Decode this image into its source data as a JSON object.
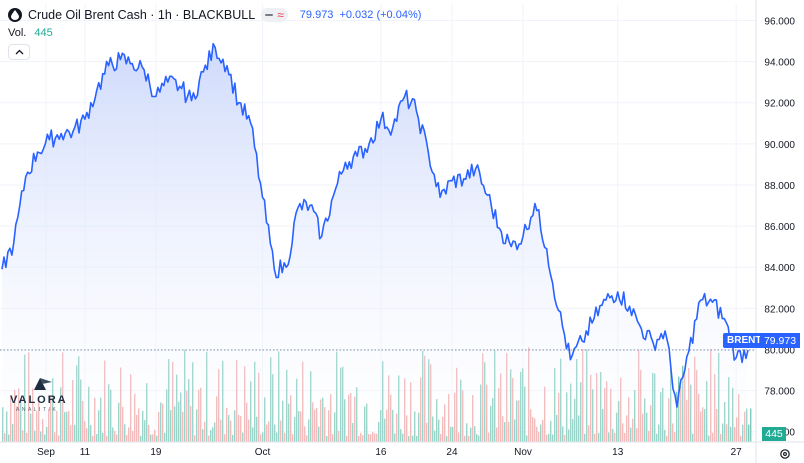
{
  "header": {
    "symbol_title": "Crude Oil Brent Cash · 1h · BLACKBULL",
    "wave_glyph": "≈",
    "last_price": "79.973",
    "change": "+0.032 (+0.04%)"
  },
  "volume": {
    "label": "Vol.",
    "value": "445"
  },
  "tags": {
    "series_label": "BRENT",
    "last_price": "79.973",
    "last_volume": "445"
  },
  "logo": {
    "name": "VALORA",
    "sub": "ANALITIK"
  },
  "colors": {
    "line": "#2962ff",
    "area_top": "#c9d6fb",
    "area_bottom": "#ffffff",
    "vol_up": "#7fc9bb",
    "vol_down": "#f0a9a9",
    "grid": "#f0f3fa",
    "axis_text": "#131722"
  },
  "chart_data": {
    "type": "area",
    "title": "Crude Oil Brent Cash · 1h · BLACKBULL",
    "xlabel": "",
    "ylabel": "",
    "x_ticks": [
      "Sep",
      "11",
      "19",
      "Oct",
      "16",
      "24",
      "Nov",
      "13",
      "27"
    ],
    "y_ticks": [
      "96.000",
      "94.000",
      "92.000",
      "90.000",
      "88.000",
      "86.000",
      "84.000",
      "82.000",
      "80.000",
      "78.000",
      "76.000"
    ],
    "ylim": [
      75.5,
      96.8
    ],
    "grid": true,
    "last_value": 79.973,
    "series": [
      {
        "name": "BRENT",
        "x": [
          "Aug 31",
          "Sep 1",
          "Sep 4",
          "Sep 5",
          "Sep 6",
          "Sep 7",
          "Sep 8",
          "Sep 11",
          "Sep 12",
          "Sep 13",
          "Sep 14",
          "Sep 15",
          "Sep 18",
          "Sep 19",
          "Sep 20",
          "Sep 21",
          "Sep 22",
          "Sep 25",
          "Sep 26",
          "Sep 27",
          "Sep 28",
          "Sep 29",
          "Oct 2",
          "Oct 3",
          "Oct 4",
          "Oct 5",
          "Oct 6",
          "Oct 9",
          "Oct 10",
          "Oct 11",
          "Oct 12",
          "Oct 13",
          "Oct 16",
          "Oct 17",
          "Oct 18",
          "Oct 19",
          "Oct 20",
          "Oct 23",
          "Oct 24",
          "Oct 25",
          "Oct 26",
          "Oct 27",
          "Oct 30",
          "Oct 31",
          "Nov 1",
          "Nov 2",
          "Nov 3",
          "Nov 6",
          "Nov 7",
          "Nov 8",
          "Nov 9",
          "Nov 10",
          "Nov 13",
          "Nov 14",
          "Nov 15",
          "Nov 16",
          "Nov 17",
          "Nov 20",
          "Nov 21",
          "Nov 22",
          "Nov 23",
          "Nov 24",
          "Nov 27",
          "Nov 28"
        ],
        "values": [
          83.9,
          85.2,
          88.4,
          89.6,
          90.2,
          90.5,
          90.6,
          91.2,
          92.6,
          93.8,
          94.1,
          93.9,
          93.6,
          92.3,
          93.0,
          92.8,
          92.1,
          93.5,
          94.7,
          93.8,
          92.0,
          91.0,
          87.4,
          83.9,
          84.0,
          86.9,
          87.0,
          85.5,
          87.5,
          89.1,
          89.4,
          90.0,
          91.2,
          90.8,
          92.3,
          91.6,
          89.6,
          87.4,
          88.2,
          88.3,
          88.8,
          87.5,
          85.9,
          85.0,
          85.5,
          87.1,
          84.9,
          81.9,
          79.5,
          80.4,
          81.5,
          82.4,
          82.8,
          82.1,
          81.0,
          80.3,
          80.9,
          77.2,
          79.9,
          82.4,
          82.3,
          81.5,
          79.6,
          79.973
        ]
      }
    ]
  }
}
